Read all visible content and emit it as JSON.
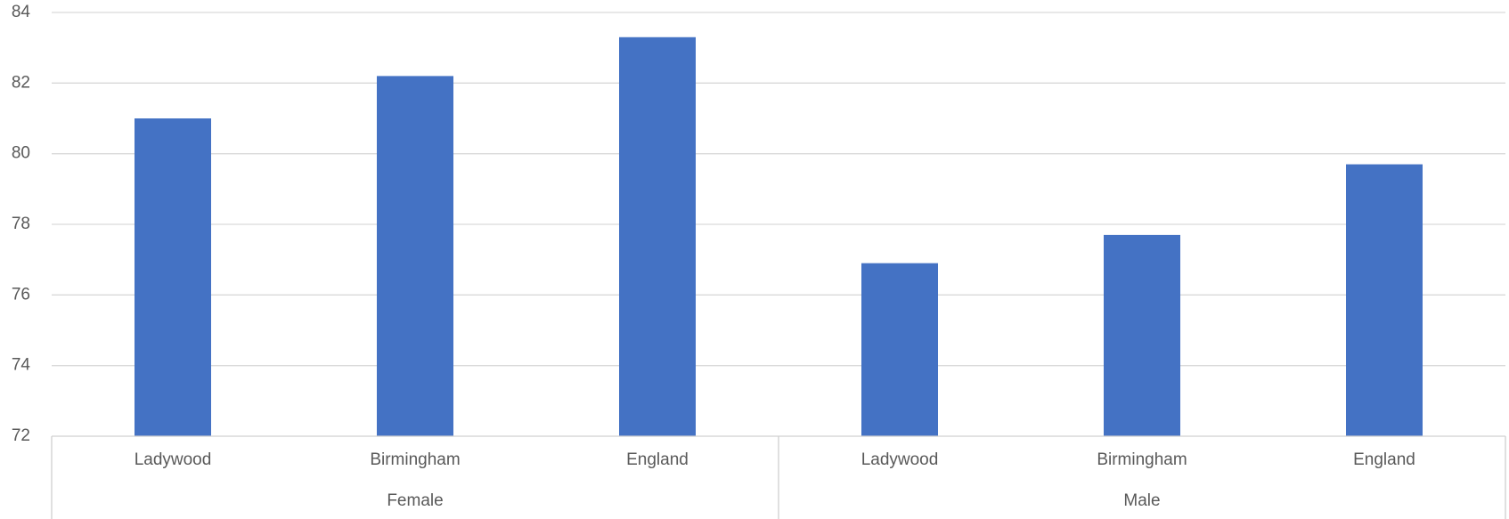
{
  "chart_data": {
    "type": "bar",
    "title": "",
    "xlabel": "",
    "ylabel": "",
    "ylim": [
      72,
      84
    ],
    "yticks": [
      72,
      74,
      76,
      78,
      80,
      82,
      84
    ],
    "grid": true,
    "legend": "none",
    "groups": [
      {
        "label": "Female",
        "categories": [
          "Ladywood",
          "Birmingham",
          "England"
        ],
        "values": [
          81.0,
          82.2,
          83.3
        ]
      },
      {
        "label": "Male",
        "categories": [
          "Ladywood",
          "Birmingham",
          "England"
        ],
        "values": [
          76.9,
          77.7,
          79.7
        ]
      }
    ],
    "bar_color": "#4472C4"
  }
}
